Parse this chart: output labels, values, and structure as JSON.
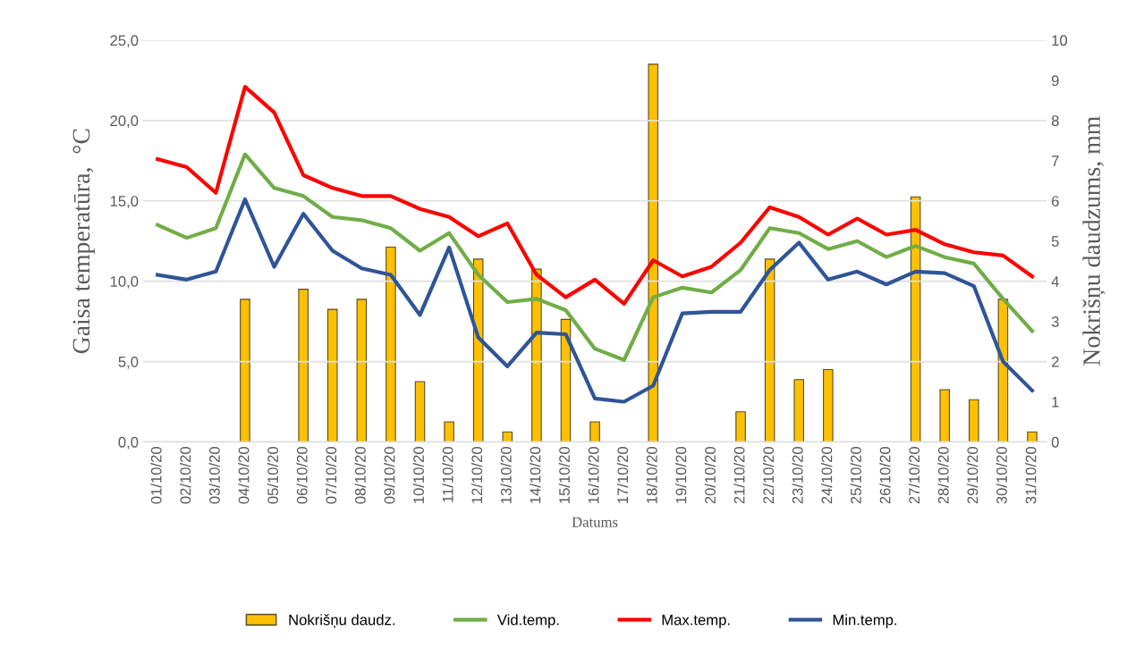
{
  "chart_data": {
    "type": "line",
    "xlabel": "Datums",
    "ylabel": "Gaisa temperatūra,  °C",
    "y2label": "Nokrišņu daudzums, mm",
    "categories": [
      "01/10/20",
      "02/10/20",
      "03/10/20",
      "04/10/20",
      "05/10/20",
      "06/10/20",
      "07/10/20",
      "08/10/20",
      "09/10/20",
      "10/10/20",
      "11/10/20",
      "12/10/20",
      "13/10/20",
      "14/10/20",
      "15/10/20",
      "16/10/20",
      "17/10/20",
      "18/10/20",
      "19/10/20",
      "20/10/20",
      "21/10/20",
      "22/10/20",
      "23/10/20",
      "24/10/20",
      "25/10/20",
      "26/10/20",
      "27/10/20",
      "28/10/20",
      "29/10/20",
      "30/10/20",
      "31/10/20"
    ],
    "series": [
      {
        "name": "Nokrišņu daudz.",
        "type": "bar",
        "axis": "y2",
        "color": "#ffc000",
        "values": [
          null,
          null,
          null,
          3.55,
          null,
          3.8,
          3.3,
          3.55,
          4.85,
          1.5,
          0.5,
          4.55,
          0.25,
          4.3,
          3.05,
          0.5,
          null,
          9.4,
          null,
          null,
          0.75,
          4.55,
          1.55,
          1.8,
          null,
          null,
          6.1,
          1.3,
          1.05,
          3.55,
          0.25
        ]
      },
      {
        "name": "Vid.temp.",
        "color": "#70ad47",
        "values": [
          13.5,
          12.7,
          13.3,
          17.9,
          15.8,
          15.3,
          14.0,
          13.8,
          13.3,
          11.9,
          13.0,
          10.4,
          8.7,
          8.9,
          8.2,
          5.8,
          5.1,
          9.0,
          9.6,
          9.3,
          10.7,
          13.3,
          13.0,
          12.0,
          12.5,
          11.5,
          12.2,
          11.5,
          11.1,
          8.9,
          6.9
        ]
      },
      {
        "name": "Max.temp.",
        "color": "#ff0000",
        "values": [
          17.6,
          17.1,
          15.5,
          22.1,
          20.5,
          16.6,
          15.8,
          15.3,
          15.3,
          14.5,
          14.0,
          12.8,
          13.6,
          10.4,
          9.0,
          10.1,
          8.6,
          11.3,
          10.3,
          10.9,
          12.4,
          14.6,
          14.0,
          12.9,
          13.9,
          12.9,
          13.2,
          12.3,
          11.8,
          11.6,
          10.3
        ]
      },
      {
        "name": "Min.temp.",
        "color": "#2f5597",
        "values": [
          10.4,
          10.1,
          10.6,
          15.1,
          10.9,
          14.2,
          11.9,
          10.8,
          10.4,
          7.9,
          12.1,
          6.5,
          4.7,
          6.8,
          6.7,
          2.7,
          2.5,
          3.5,
          8.0,
          8.1,
          8.1,
          10.7,
          12.4,
          10.1,
          10.6,
          9.8,
          10.6,
          10.5,
          9.7,
          5.0,
          3.2
        ]
      }
    ],
    "ylim": [
      0,
      25
    ],
    "yticks": [
      {
        "value": 0,
        "label": "0,0"
      },
      {
        "value": 5,
        "label": "5,0"
      },
      {
        "value": 10,
        "label": "10,0"
      },
      {
        "value": 15,
        "label": "15,0"
      },
      {
        "value": 20,
        "label": "20,0"
      },
      {
        "value": 25,
        "label": "25,0"
      }
    ],
    "y2lim": [
      0,
      10
    ],
    "y2ticks": [
      0,
      1,
      2,
      3,
      4,
      5,
      6,
      7,
      8,
      9,
      10
    ],
    "grid": "y",
    "legend": "bottom",
    "marker": "none",
    "line_style": "solid"
  }
}
